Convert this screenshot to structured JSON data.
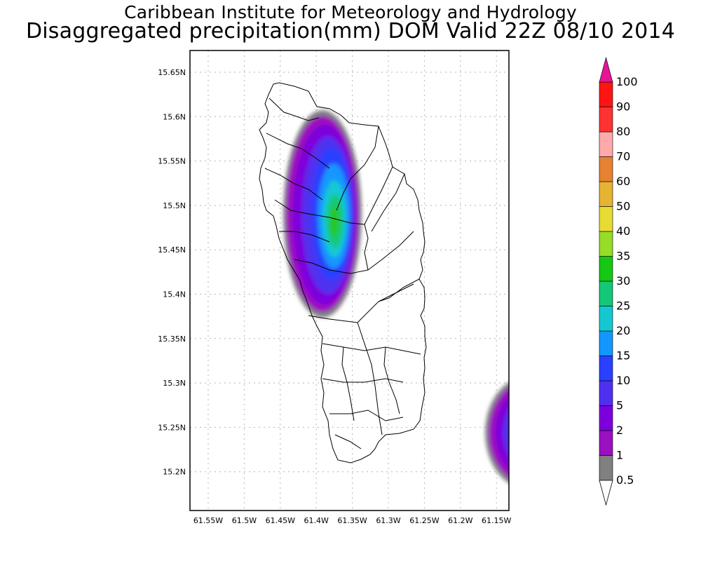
{
  "header": {
    "institute": "Caribbean Institute for Meteorology and Hydrology",
    "title": "Disaggregated precipitation(mm) DOM Valid 22Z 08/10 2014"
  },
  "map": {
    "lat_ticks": [
      "15.65N",
      "15.6N",
      "15.55N",
      "15.5N",
      "15.45N",
      "15.4N",
      "15.35N",
      "15.3N",
      "15.25N",
      "15.2N"
    ],
    "lon_ticks": [
      "61.55W",
      "61.5W",
      "61.45W",
      "61.4W",
      "61.35W",
      "61.3W",
      "61.25W",
      "61.2W",
      "61.15W"
    ]
  },
  "colorbar": {
    "levels": [
      "0.5",
      "1",
      "2",
      "5",
      "10",
      "15",
      "20",
      "25",
      "30",
      "35",
      "40",
      "50",
      "60",
      "70",
      "80",
      "90",
      "100"
    ],
    "colors": [
      "#808080",
      "#9b10c0",
      "#7d00dc",
      "#5030f0",
      "#2a40ff",
      "#1496ff",
      "#14c8d2",
      "#14c878",
      "#14c814",
      "#96dc28",
      "#e6dc32",
      "#e6b432",
      "#e68232",
      "#ffaaaa",
      "#ff3232",
      "#ff1414",
      "#e61496"
    ]
  }
}
